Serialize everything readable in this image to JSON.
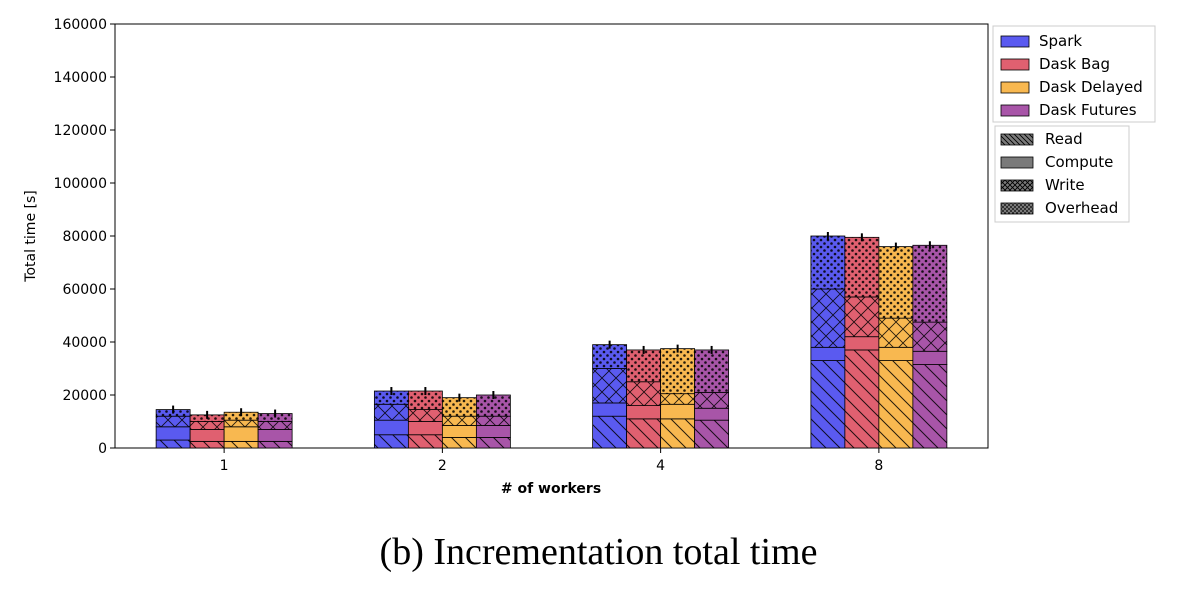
{
  "caption": "(b) Incrementation total time",
  "chart_data": {
    "type": "bar",
    "stacked": true,
    "xlabel": "# of workers",
    "ylabel": "Total time [s]",
    "ylim": [
      0,
      160000
    ],
    "yticks": [
      "0",
      "20000",
      "40000",
      "60000",
      "80000",
      "100000",
      "120000",
      "140000",
      "160000"
    ],
    "categories": [
      "1",
      "2",
      "4",
      "8"
    ],
    "grid": false,
    "legend_position": "right, outside plot",
    "series": [
      {
        "name": "Spark",
        "color": "#5a5af0",
        "components": {
          "Read": [
            3000,
            5000,
            12000,
            33000
          ],
          "Compute": [
            5000,
            5500,
            5000,
            5000
          ],
          "Write": [
            4000,
            6000,
            13000,
            22000
          ],
          "Overhead": [
            2500,
            5000,
            9000,
            20000
          ]
        }
      },
      {
        "name": "Dask Bag",
        "color": "#e06070",
        "components": {
          "Read": [
            2500,
            5000,
            11000,
            37000
          ],
          "Compute": [
            4500,
            5000,
            5000,
            5000
          ],
          "Write": [
            3000,
            4500,
            9000,
            15000
          ],
          "Overhead": [
            2500,
            7000,
            12000,
            22500
          ]
        }
      },
      {
        "name": "Dask Delayed",
        "color": "#f8b850",
        "components": {
          "Read": [
            2500,
            4000,
            11000,
            33000
          ],
          "Compute": [
            5500,
            4500,
            5500,
            5000
          ],
          "Write": [
            2500,
            3500,
            4000,
            11000
          ],
          "Overhead": [
            3000,
            7000,
            17000,
            27000
          ]
        }
      },
      {
        "name": "Dask Futures",
        "color": "#a855a8",
        "components": {
          "Read": [
            2500,
            4000,
            10500,
            31500
          ],
          "Compute": [
            4500,
            4500,
            4500,
            5000
          ],
          "Write": [
            3000,
            3500,
            6000,
            11000
          ],
          "Overhead": [
            3000,
            8000,
            16000,
            29000
          ]
        }
      }
    ],
    "components": [
      "Read",
      "Compute",
      "Write",
      "Overhead"
    ],
    "component_patterns": [
      "diagonal-hatch",
      "solid",
      "crosshatch",
      "dots"
    ]
  }
}
